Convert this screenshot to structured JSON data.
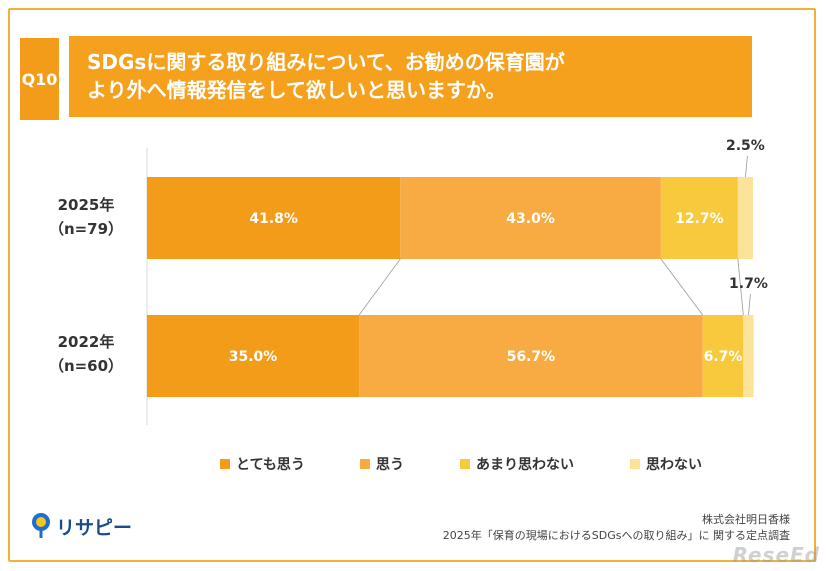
{
  "question": {
    "number": "Q10",
    "title_line1": "SDGsに関する取り組みについて、お勧めの保育園が",
    "title_line2": "より外へ情報発信をして欲しいと思いますか。"
  },
  "chart_data": {
    "type": "bar",
    "orientation": "horizontal",
    "stacked": "percent",
    "categories": [
      "2025年（n=79）",
      "2022年（n=60）"
    ],
    "row_labels": [
      {
        "year": "2025年",
        "n": "（n=79）"
      },
      {
        "year": "2022年",
        "n": "（n=60）"
      }
    ],
    "series": [
      {
        "name": "とても思う",
        "color": "#f39c1a",
        "values": [
          41.8,
          35.0
        ]
      },
      {
        "name": "思う",
        "color": "#f8ab43",
        "values": [
          43.0,
          56.7
        ]
      },
      {
        "name": "あまり思わない",
        "color": "#f8c93d",
        "values": [
          12.7,
          6.7
        ]
      },
      {
        "name": "思わない",
        "color": "#fbe39a",
        "values": [
          2.5,
          1.7
        ]
      }
    ],
    "value_labels": [
      [
        "41.8%",
        "43.0%",
        "12.7%",
        "2.5%"
      ],
      [
        "35.0%",
        "56.7%",
        "6.7%",
        "1.7%"
      ]
    ],
    "xlim": [
      0,
      100
    ],
    "legend_position": "bottom"
  },
  "footer": {
    "brand": "リサピー",
    "source_line1": "株式会社明日香様",
    "source_line2": "2025年「保育の現場におけるSDGsへの取り組み」に 関する定点調査"
  },
  "watermark": "ReseEd"
}
